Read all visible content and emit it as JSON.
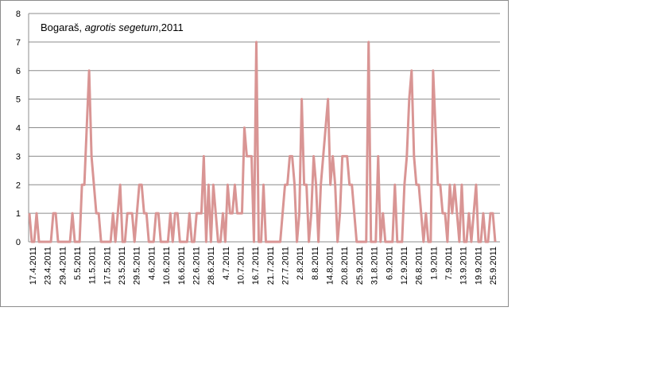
{
  "chart_data": {
    "type": "line",
    "title": "Bogaraš, ",
    "title_italic": "agrotis segetum",
    "title_suffix": ",2011",
    "xlabel": "",
    "ylabel": "",
    "ylim": [
      0,
      8
    ],
    "yticks": [
      "0",
      "1",
      "2",
      "3",
      "4",
      "5",
      "6",
      "7",
      "8"
    ],
    "grid": true,
    "line_color": "#d99594",
    "x_start": "17.4.2011",
    "x_end": "29.9.2011",
    "xtick_labels": [
      "17.4.2011",
      "23.4.2011",
      "29.4.2011",
      "5.5.2011",
      "11.5.2011",
      "17.5.2011",
      "23.5.2011",
      "29.5.2011",
      "4.6.2011",
      "10.6.2011",
      "16.6.2011",
      "22.6.2011",
      "28.6.2011",
      "4.7.2011",
      "10.7.2011",
      "16.7.2011",
      "21.7.2011",
      "27.7.2011",
      "2.8.2011",
      "8.8.2011",
      "14.8.2011",
      "20.8.2011",
      "25.9.2011",
      "31.8.2011",
      "6.9.2011",
      "12.9.2011",
      "26.8.2011",
      "1.9.2011",
      "7.9.2011",
      "13.9.2011",
      "19.9.2011",
      "25.9.2011"
    ],
    "values": [
      1,
      0,
      0,
      1,
      0,
      0,
      0,
      0,
      0,
      0,
      1,
      1,
      0,
      0,
      0,
      0,
      0,
      0,
      1,
      0,
      0,
      0,
      2,
      2,
      4,
      6,
      3,
      2,
      1,
      1,
      0,
      0,
      0,
      0,
      0,
      1,
      0,
      1,
      2,
      0,
      0,
      1,
      1,
      1,
      0,
      1,
      2,
      2,
      1,
      1,
      0,
      0,
      0,
      1,
      1,
      0,
      0,
      0,
      0,
      1,
      0,
      1,
      1,
      0,
      0,
      0,
      0,
      1,
      0,
      0,
      1,
      1,
      1,
      3,
      0,
      2,
      0,
      2,
      1,
      0,
      0,
      1,
      0,
      2,
      1,
      1,
      2,
      1,
      1,
      1,
      4,
      3,
      3,
      3,
      0,
      7,
      0,
      0,
      2,
      0,
      0,
      0,
      0,
      0,
      0,
      0,
      1,
      2,
      2,
      3,
      3,
      2,
      0,
      1,
      5,
      2,
      2,
      0,
      1,
      3,
      2,
      0,
      2,
      3,
      4,
      5,
      2,
      3,
      2,
      0,
      1,
      3,
      3,
      3,
      2,
      2,
      1,
      0,
      0,
      0,
      0,
      0,
      7,
      0,
      0,
      0,
      3,
      0,
      1,
      0,
      0,
      0,
      0,
      2,
      0,
      0,
      0,
      2,
      3,
      5,
      6,
      3,
      2,
      2,
      1,
      0,
      1,
      0,
      0,
      6,
      4,
      2,
      2,
      1,
      1,
      0,
      2,
      1,
      2,
      1,
      0,
      2,
      0,
      0,
      1,
      0,
      1,
      2,
      0,
      0,
      1,
      0,
      0,
      1,
      1,
      0
    ]
  }
}
